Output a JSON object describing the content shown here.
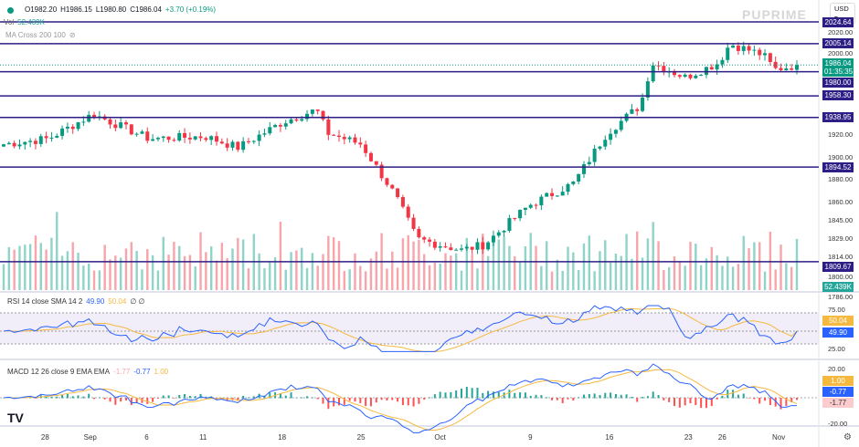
{
  "header": {
    "symbol_status_color": "#089981",
    "open": "O1982.20",
    "high": "H1986.15",
    "low": "L1980.80",
    "close": "C1986.04",
    "change": "+3.70 (+0.19%)",
    "vol_label": "Vol",
    "vol_value": "52.439K",
    "ma_label": "MA Cross 200 100",
    "currency": "USD",
    "watermark": "PUPRIME"
  },
  "price_axis": {
    "ticks": [
      "2020.00",
      "2000.00",
      "1920.00",
      "1900.00",
      "1880.00",
      "1860.00",
      "1845.00",
      "1829.00",
      "1814.00",
      "1800.00",
      "1786.00"
    ]
  },
  "levels": [
    {
      "label": "2024.64",
      "value": 2024.64
    },
    {
      "label": "2005.14",
      "value": 2005.14
    },
    {
      "label": "1980.00",
      "value": 1980.0
    },
    {
      "label": "1958.30",
      "value": 1958.3
    },
    {
      "label": "1938.95",
      "value": 1938.95
    },
    {
      "label": "1894.52",
      "value": 1894.52
    },
    {
      "label": "1809.67",
      "value": 1809.67
    }
  ],
  "last_price": {
    "value": "1986.04",
    "countdown": "01:35:35",
    "volume": "52.439K"
  },
  "rsi": {
    "label": "RSI 14 close SMA 14 2",
    "rsi": "49.90",
    "sma": "50.04",
    "extra": "∅ ∅",
    "ticks": [
      "75.00",
      "25.00"
    ]
  },
  "macd": {
    "label": "MACD 12 26 close 9 EMA EMA",
    "hist": "-1.77",
    "macd": "-0.77",
    "signal": "1.00",
    "ticks": [
      "20.00",
      "-20.00"
    ]
  },
  "dates": [
    {
      "t": "28",
      "d": 4
    },
    {
      "t": "Sep",
      "d": 8
    },
    {
      "t": "6",
      "d": 13
    },
    {
      "t": "11",
      "d": 18
    },
    {
      "t": "18",
      "d": 25
    },
    {
      "t": "25",
      "d": 32
    },
    {
      "t": "Oct",
      "d": 39
    },
    {
      "t": "9",
      "d": 47
    },
    {
      "t": "16",
      "d": 54
    },
    {
      "t": "23",
      "d": 61
    },
    {
      "t": "26",
      "d": 64
    },
    {
      "t": "Nov",
      "d": 69
    }
  ],
  "chart_data": {
    "type": "candlestick",
    "x_days": [
      0,
      4,
      8,
      13,
      18,
      21,
      25,
      28,
      29,
      32,
      35,
      37,
      39,
      41,
      43,
      47,
      50,
      51,
      54,
      57,
      58,
      61,
      64,
      65,
      68,
      69,
      71
    ],
    "close": [
      1915,
      1920,
      1942,
      1920,
      1922,
      1912,
      1935,
      1946,
      1925,
      1915,
      1870,
      1830,
      1825,
      1820,
      1825,
      1860,
      1875,
      1880,
      1925,
      1950,
      1988,
      1975,
      1988,
      2005,
      1995,
      1982,
      1986
    ]
  },
  "colors": {
    "up": "#089981",
    "down": "#f23645",
    "level": "#2d1e85",
    "rsi": "#2962ff",
    "sma": "#f5b940"
  }
}
